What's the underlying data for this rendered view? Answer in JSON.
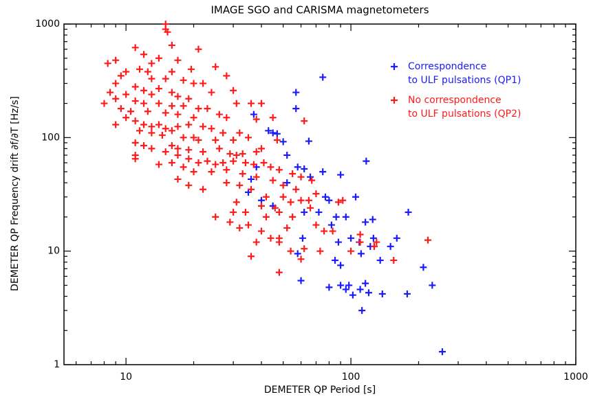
{
  "chart_data": {
    "type": "scatter",
    "title": "IMAGE SGO and CARISMA magnetometers",
    "x_label": "DEMETER QP Period [s]",
    "y_label": "DEMETER QP Frequency drift ∂f/∂T [Hz/s]",
    "x_scale": "log",
    "y_scale": "log",
    "xlim": [
      5.3,
      1000
    ],
    "ylim": [
      1,
      1000
    ],
    "xticks": [
      10,
      100,
      1000
    ],
    "yticks": [
      1,
      10,
      100,
      1000
    ],
    "xminorticks": [
      6,
      7,
      8,
      9,
      20,
      30,
      40,
      50,
      60,
      70,
      80,
      90,
      200,
      300,
      400,
      500,
      600,
      700,
      800,
      900
    ],
    "yminorticks": [
      2,
      3,
      4,
      5,
      6,
      7,
      8,
      9,
      20,
      30,
      40,
      50,
      60,
      70,
      80,
      90,
      200,
      300,
      400,
      500,
      600,
      700,
      800,
      900
    ],
    "legend_position": "upper right",
    "series": [
      {
        "name": "Correspondence\nto ULF pulsations (QP1)",
        "color": "#1a1aff",
        "x": [
          75,
          57,
          57,
          37,
          43,
          45,
          47,
          50,
          65,
          52,
          117,
          38,
          58,
          62,
          75,
          90,
          66,
          35,
          52,
          77,
          105,
          80,
          62,
          72,
          86,
          95,
          116,
          125,
          180,
          82,
          100,
          126,
          160,
          61,
          88,
          109,
          122,
          58,
          85,
          90,
          111,
          135,
          150,
          210,
          60,
          80,
          90,
          95,
          98,
          102,
          110,
          116,
          120,
          138,
          178,
          230,
          112,
          255,
          40,
          45,
          36
        ],
        "y": [
          340,
          250,
          180,
          160,
          115,
          110,
          108,
          92,
          93,
          70,
          62,
          55,
          55,
          53,
          50,
          47,
          45,
          33,
          40,
          30,
          30,
          28,
          22,
          22,
          20,
          20,
          18,
          19,
          22,
          17,
          13,
          13,
          13,
          13,
          12,
          12,
          11,
          9.5,
          8.3,
          7.5,
          9.5,
          8.3,
          11,
          7.2,
          5.5,
          4.8,
          5,
          4.6,
          5,
          4.1,
          4.6,
          5.2,
          4.3,
          4.2,
          4.2,
          5,
          3,
          1.3,
          28,
          25,
          43
        ]
      },
      {
        "name": "No correspondence\nto ULF pulsations (QP2)",
        "color": "#ff1a1a",
        "x": [
          15,
          15,
          15.3,
          16,
          11,
          12,
          21,
          8.3,
          9,
          14,
          17,
          13,
          11.5,
          19.5,
          10,
          12.5,
          16,
          25,
          28,
          9.5,
          13,
          15,
          18,
          20,
          22,
          9,
          11,
          12,
          14,
          16,
          24,
          8.5,
          10,
          13,
          17,
          19,
          30,
          40,
          31,
          9,
          11,
          12,
          14,
          16,
          18,
          21,
          23,
          8,
          9.5,
          10.5,
          12.5,
          15,
          17,
          20,
          26,
          28,
          36,
          38,
          62,
          10,
          11,
          12,
          13,
          14,
          15,
          16,
          17,
          19,
          22,
          24,
          27,
          32,
          45,
          9,
          11.5,
          13,
          14.5,
          18,
          20,
          21,
          25,
          30,
          35,
          47,
          11,
          12,
          13,
          16,
          17,
          19,
          22,
          26,
          29,
          31,
          33,
          38,
          40,
          11,
          11,
          15,
          17,
          19,
          21,
          23,
          25,
          27,
          30,
          34,
          37,
          41,
          44,
          14,
          16,
          18,
          20,
          24,
          28,
          33,
          38,
          48,
          55,
          60,
          67,
          17,
          19,
          22,
          28,
          32,
          45,
          50,
          57,
          36,
          42,
          50,
          60,
          65,
          70,
          88,
          92,
          31,
          40,
          46,
          54,
          34,
          42,
          48,
          55,
          66,
          25,
          29,
          32,
          40,
          52,
          70,
          35,
          44,
          48,
          30,
          38,
          48,
          54,
          62,
          73,
          60,
          36,
          48,
          110,
          110,
          127,
          155,
          220,
          76,
          100,
          83,
          130
        ],
        "y": [
          1000,
          900,
          850,
          650,
          620,
          540,
          600,
          450,
          480,
          500,
          480,
          450,
          400,
          400,
          380,
          380,
          380,
          420,
          350,
          350,
          330,
          330,
          320,
          300,
          300,
          300,
          280,
          260,
          270,
          250,
          250,
          250,
          240,
          240,
          230,
          220,
          260,
          200,
          200,
          220,
          210,
          200,
          200,
          190,
          190,
          180,
          180,
          200,
          180,
          170,
          170,
          165,
          160,
          150,
          160,
          150,
          200,
          145,
          140,
          150,
          140,
          130,
          125,
          130,
          120,
          115,
          125,
          130,
          125,
          120,
          110,
          110,
          150,
          130,
          115,
          110,
          105,
          100,
          100,
          95,
          95,
          95,
          100,
          95,
          90,
          85,
          80,
          85,
          80,
          78,
          75,
          80,
          72,
          70,
          72,
          75,
          80,
          70,
          65,
          75,
          70,
          65,
          60,
          62,
          58,
          60,
          62,
          60,
          58,
          60,
          55,
          58,
          60,
          55,
          50,
          50,
          52,
          48,
          45,
          52,
          48,
          45,
          42,
          43,
          38,
          35,
          40,
          38,
          42,
          38,
          35,
          35,
          30,
          30,
          28,
          28,
          32,
          27,
          28,
          27,
          25,
          24,
          27,
          22,
          20,
          22,
          20,
          24,
          20,
          18,
          16,
          15,
          16,
          17,
          17,
          13,
          13,
          22,
          12,
          12,
          10,
          10.5,
          10,
          8.5,
          9,
          6.5,
          12,
          14,
          11,
          8.3,
          12.5,
          15,
          10,
          15,
          12
        ]
      }
    ]
  }
}
